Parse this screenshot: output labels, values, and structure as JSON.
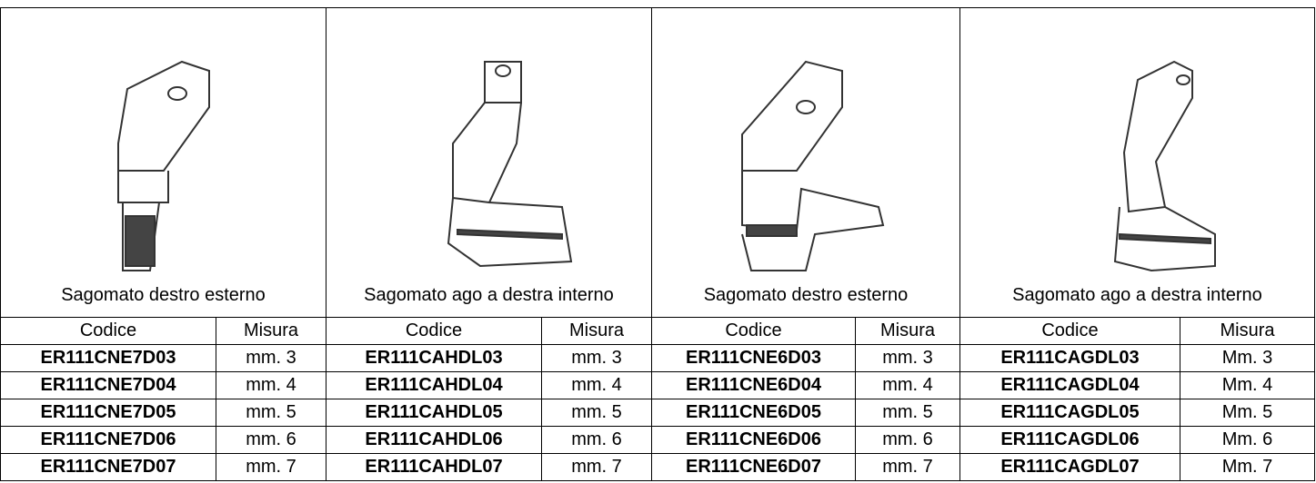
{
  "products": [
    {
      "caption": "Sagomato destro esterno",
      "headers": [
        "Codice",
        "Misura"
      ],
      "rows": [
        [
          "ER111CNE7D03",
          "mm. 3"
        ],
        [
          "ER111CNE7D04",
          "mm. 4"
        ],
        [
          "ER111CNE7D05",
          "mm. 5"
        ],
        [
          "ER111CNE7D06",
          "mm. 6"
        ],
        [
          "ER111CNE7D07",
          "mm. 7"
        ]
      ]
    },
    {
      "caption": "Sagomato ago a destra interno",
      "headers": [
        "Codice",
        "Misura"
      ],
      "rows": [
        [
          "ER111CAHDL03",
          "mm. 3"
        ],
        [
          "ER111CAHDL04",
          "mm. 4"
        ],
        [
          "ER111CAHDL05",
          "mm. 5"
        ],
        [
          "ER111CAHDL06",
          "mm. 6"
        ],
        [
          "ER111CAHDL07",
          "mm. 7"
        ]
      ]
    },
    {
      "caption": "Sagomato destro esterno",
      "headers": [
        "Codice",
        "Misura"
      ],
      "rows": [
        [
          "ER111CNE6D03",
          "mm. 3"
        ],
        [
          "ER111CNE6D04",
          "mm. 4"
        ],
        [
          "ER111CNE6D05",
          "mm. 5"
        ],
        [
          "ER111CNE6D06",
          "mm. 6"
        ],
        [
          "ER111CNE6D07",
          "mm. 7"
        ]
      ]
    },
    {
      "caption": "Sagomato ago a destra interno",
      "headers": [
        "Codice",
        "Misura"
      ],
      "rows": [
        [
          "ER111CAGDL03",
          "Mm. 3"
        ],
        [
          "ER111CAGDL04",
          "Mm. 4"
        ],
        [
          "ER111CAGDL05",
          "Mm. 5"
        ],
        [
          "ER111CAGDL06",
          "Mm. 6"
        ],
        [
          "ER111CAGDL07",
          "Mm. 7"
        ]
      ]
    }
  ]
}
